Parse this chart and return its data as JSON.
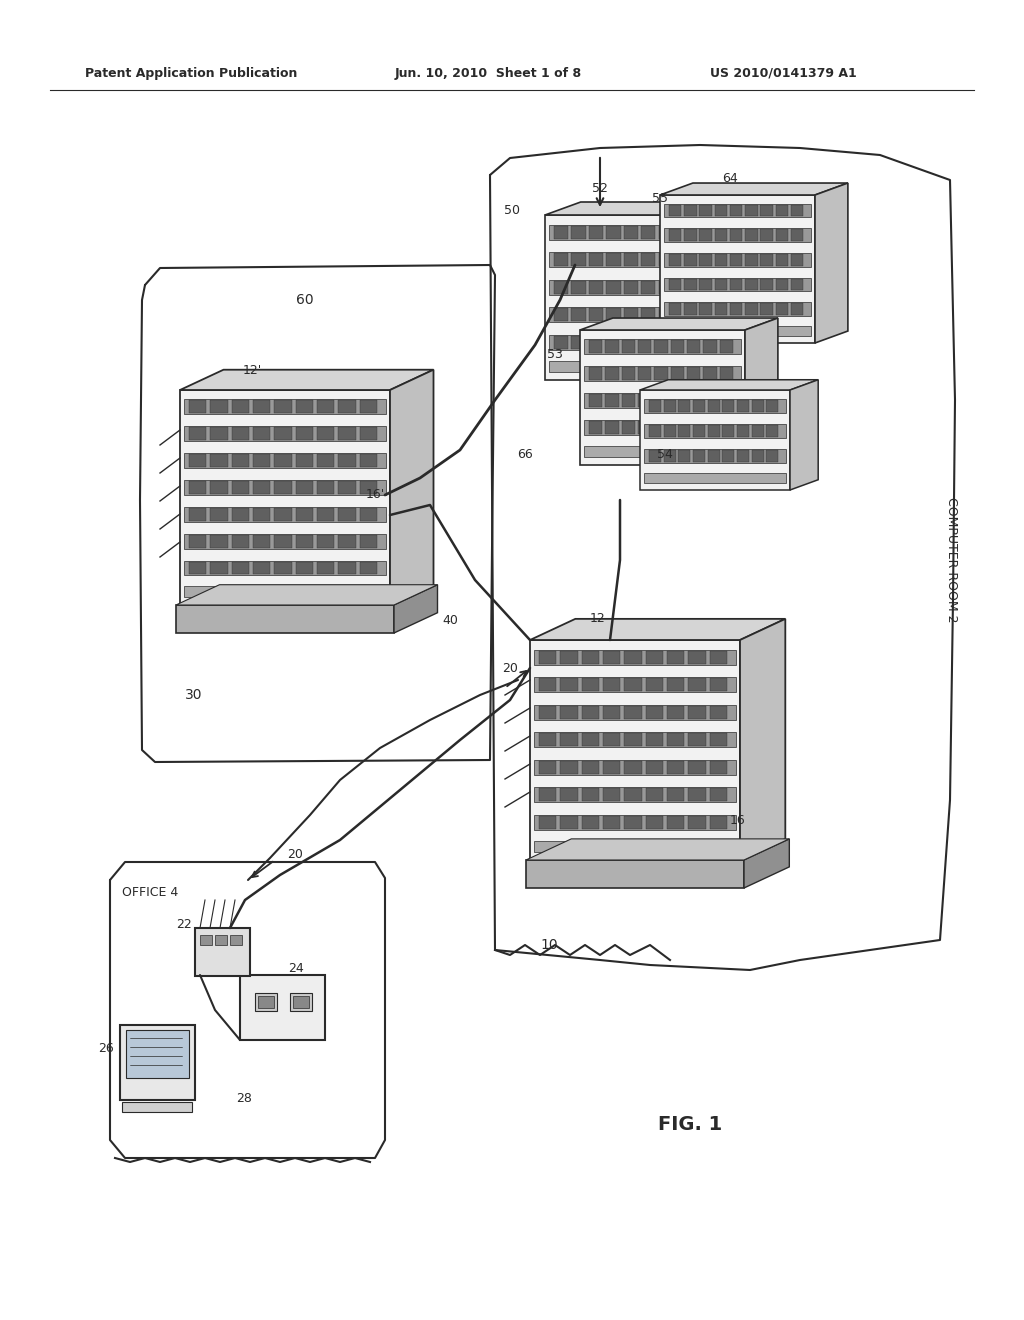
{
  "header_left": "Patent Application Publication",
  "header_center": "Jun. 10, 2010  Sheet 1 of 8",
  "header_right": "US 2010/0141379 A1",
  "figure_label": "FIG. 1",
  "background_color": "#ffffff",
  "line_color": "#2a2a2a",
  "labels": {
    "computer_room": "COMPUTER ROOM 2",
    "office": "OFFICE 4",
    "num_10": "10",
    "num_12": "12",
    "num_16": "16",
    "num_20a": "20",
    "num_20b": "20",
    "num_22": "22",
    "num_24": "24",
    "num_26": "26",
    "num_28": "28",
    "num_30": "30",
    "num_40": "40",
    "num_50": "50",
    "num_52": "52",
    "num_53": "53",
    "num_54": "54",
    "num_55": "55",
    "num_60": "60",
    "num_64": "64",
    "num_66": "66",
    "num_12p": "12'",
    "num_16p": "16'"
  }
}
